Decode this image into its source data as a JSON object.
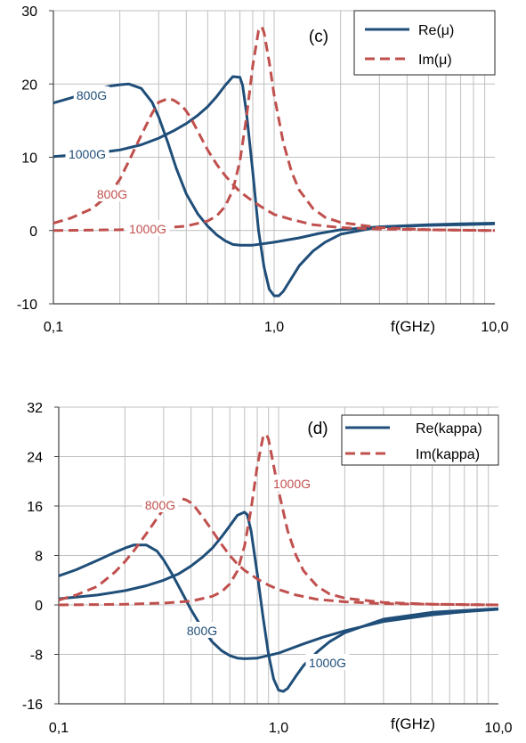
{
  "colors": {
    "re": "#1f4e79",
    "im": "#c0504d",
    "grid": "#bfbfbf",
    "axis": "#404040",
    "text": "#000000"
  },
  "chart_data": [
    {
      "type": "line",
      "panel_label": "(c)",
      "xlabel": "f(GHz)",
      "x_scale": "log",
      "xlim": [
        0.1,
        10.0
      ],
      "ylim": [
        -10,
        30
      ],
      "x_ticks": [
        0.1,
        1.0,
        10.0
      ],
      "x_tick_labels": [
        "0,1",
        "1,0",
        "10,0"
      ],
      "y_ticks": [
        -10,
        0,
        10,
        20,
        30
      ],
      "y_tick_labels": [
        "-10",
        "0",
        "10",
        "20",
        "30"
      ],
      "grid": true,
      "legend_position": "top-right",
      "legend": [
        "Re(μ)",
        "Im(μ)"
      ],
      "series": [
        {
          "name": "Re(μ)",
          "curve_label": "800G",
          "style": "solid",
          "x": [
            0.1,
            0.12,
            0.15,
            0.18,
            0.2,
            0.22,
            0.25,
            0.28,
            0.3,
            0.33,
            0.36,
            0.4,
            0.45,
            0.5,
            0.55,
            0.6,
            0.65,
            0.7,
            0.8,
            1.0,
            1.3,
            1.6,
            2.0,
            3.0,
            5.0,
            7.0,
            10.0
          ],
          "y": [
            17.4,
            18.1,
            19.0,
            19.7,
            19.9,
            20.0,
            19.4,
            17.5,
            15.5,
            12.0,
            8.5,
            5.0,
            2.3,
            0.6,
            -0.6,
            -1.4,
            -1.9,
            -2.0,
            -2.0,
            -1.6,
            -1.0,
            -0.4,
            0.1,
            0.5,
            0.7,
            0.8,
            0.9
          ]
        },
        {
          "name": "Re(μ)",
          "curve_label": "1000G",
          "style": "solid",
          "x": [
            0.1,
            0.15,
            0.2,
            0.25,
            0.3,
            0.35,
            0.4,
            0.45,
            0.5,
            0.55,
            0.6,
            0.65,
            0.7,
            0.72,
            0.75,
            0.8,
            0.85,
            0.9,
            0.95,
            1.0,
            1.05,
            1.1,
            1.2,
            1.3,
            1.5,
            1.7,
            2.0,
            3.0,
            5.0,
            7.0,
            10.0
          ],
          "y": [
            10.1,
            10.5,
            11.0,
            11.7,
            12.6,
            13.6,
            14.6,
            15.7,
            16.9,
            18.3,
            19.8,
            21.0,
            20.9,
            19.8,
            16.0,
            8.0,
            0.0,
            -5.0,
            -8.0,
            -8.9,
            -8.9,
            -8.3,
            -6.5,
            -4.8,
            -2.8,
            -1.6,
            -0.5,
            0.5,
            0.8,
            0.9,
            1.0
          ]
        },
        {
          "name": "Im(μ)",
          "curve_label": "800G",
          "style": "dashed",
          "x": [
            0.1,
            0.12,
            0.15,
            0.18,
            0.2,
            0.22,
            0.25,
            0.28,
            0.3,
            0.33,
            0.35,
            0.38,
            0.4,
            0.42,
            0.45,
            0.5,
            0.55,
            0.6,
            0.65,
            0.7,
            0.8,
            0.9,
            1.0,
            1.2,
            1.5,
            2.0,
            3.0,
            5.0,
            10.0
          ],
          "y": [
            1.0,
            1.7,
            3.0,
            5.0,
            7.0,
            9.5,
            13.0,
            16.0,
            17.5,
            18.0,
            17.8,
            17.1,
            16.3,
            15.3,
            13.6,
            11.0,
            9.0,
            7.5,
            6.3,
            5.3,
            4.0,
            3.0,
            2.2,
            1.5,
            0.8,
            0.4,
            0.2,
            0.1,
            0.0
          ]
        },
        {
          "name": "Im(μ)",
          "curve_label": "1000G",
          "style": "dashed",
          "x": [
            0.1,
            0.2,
            0.3,
            0.4,
            0.5,
            0.55,
            0.6,
            0.65,
            0.7,
            0.75,
            0.8,
            0.85,
            0.88,
            0.9,
            0.95,
            1.0,
            1.1,
            1.2,
            1.3,
            1.5,
            1.7,
            2.0,
            3.0,
            5.0,
            10.0
          ],
          "y": [
            0.0,
            0.1,
            0.3,
            0.6,
            1.3,
            2.0,
            3.3,
            5.5,
            9.5,
            15.5,
            22.5,
            27.3,
            27.8,
            27.0,
            23.0,
            18.5,
            12.0,
            8.0,
            5.5,
            3.0,
            1.8,
            1.1,
            0.4,
            0.1,
            0.0
          ]
        }
      ]
    },
    {
      "type": "line",
      "panel_label": "(d)",
      "xlabel": "f(GHz)",
      "x_scale": "log",
      "xlim": [
        0.1,
        10.0
      ],
      "ylim": [
        -16,
        32
      ],
      "x_ticks": [
        0.1,
        1.0,
        10.0
      ],
      "x_tick_labels": [
        "0,1",
        "1,0",
        "10,0"
      ],
      "y_ticks": [
        -16,
        -8,
        0,
        8,
        16,
        24,
        32
      ],
      "y_tick_labels": [
        "-16",
        "-8",
        "0",
        "8",
        "16",
        "24",
        "32"
      ],
      "grid": true,
      "legend_position": "top-right",
      "legend": [
        "Re(kappa)",
        "Im(kappa)"
      ],
      "series": [
        {
          "name": "Re(kappa)",
          "curve_label": "800G",
          "style": "solid",
          "x": [
            0.1,
            0.12,
            0.15,
            0.18,
            0.2,
            0.22,
            0.25,
            0.28,
            0.3,
            0.33,
            0.36,
            0.4,
            0.45,
            0.5,
            0.55,
            0.6,
            0.65,
            0.7,
            0.8,
            1.0,
            1.3,
            1.6,
            2.0,
            3.0,
            5.0,
            7.0,
            10.0
          ],
          "y": [
            4.7,
            5.7,
            7.2,
            8.5,
            9.2,
            9.7,
            9.7,
            8.7,
            7.3,
            4.8,
            2.3,
            -0.8,
            -3.8,
            -6.0,
            -7.4,
            -8.2,
            -8.6,
            -8.7,
            -8.6,
            -7.8,
            -6.3,
            -5.2,
            -4.2,
            -2.7,
            -1.6,
            -1.1,
            -0.7
          ]
        },
        {
          "name": "Re(kappa)",
          "curve_label": "1000G",
          "style": "solid",
          "x": [
            0.1,
            0.15,
            0.2,
            0.25,
            0.3,
            0.35,
            0.4,
            0.45,
            0.5,
            0.55,
            0.6,
            0.65,
            0.7,
            0.72,
            0.75,
            0.8,
            0.85,
            0.9,
            0.95,
            1.0,
            1.05,
            1.1,
            1.2,
            1.3,
            1.5,
            1.7,
            2.0,
            3.0,
            5.0,
            7.0,
            10.0
          ],
          "y": [
            1.0,
            1.6,
            2.3,
            3.1,
            4.0,
            5.0,
            6.3,
            7.7,
            9.2,
            11.0,
            12.8,
            14.5,
            15.0,
            14.6,
            12.0,
            5.0,
            -2.0,
            -8.0,
            -12.0,
            -13.8,
            -14.0,
            -13.5,
            -11.5,
            -9.8,
            -7.6,
            -6.0,
            -4.5,
            -2.3,
            -1.2,
            -0.9,
            -0.6
          ]
        },
        {
          "name": "Im(kappa)",
          "curve_label": "800G",
          "style": "dashed",
          "x": [
            0.1,
            0.12,
            0.15,
            0.18,
            0.2,
            0.22,
            0.25,
            0.28,
            0.3,
            0.33,
            0.35,
            0.38,
            0.4,
            0.42,
            0.45,
            0.5,
            0.55,
            0.6,
            0.65,
            0.7,
            0.8,
            0.9,
            1.0,
            1.2,
            1.5,
            2.0,
            3.0,
            5.0,
            10.0
          ],
          "y": [
            0.8,
            1.6,
            3.0,
            5.3,
            7.0,
            8.8,
            11.5,
            14.0,
            15.5,
            17.0,
            17.3,
            17.0,
            16.5,
            15.7,
            14.3,
            12.0,
            9.8,
            8.0,
            6.6,
            5.6,
            4.2,
            3.2,
            2.5,
            1.6,
            0.9,
            0.5,
            0.2,
            0.1,
            0.0
          ]
        },
        {
          "name": "Im(kappa)",
          "curve_label": "1000G",
          "style": "dashed",
          "x": [
            0.1,
            0.2,
            0.3,
            0.4,
            0.5,
            0.55,
            0.6,
            0.65,
            0.7,
            0.75,
            0.8,
            0.85,
            0.88,
            0.9,
            0.95,
            1.0,
            1.1,
            1.2,
            1.3,
            1.5,
            1.7,
            2.0,
            3.0,
            5.0,
            10.0
          ],
          "y": [
            0.0,
            0.1,
            0.3,
            0.6,
            1.4,
            2.1,
            3.4,
            5.5,
            9.5,
            15.5,
            22.5,
            27.2,
            27.6,
            26.8,
            22.5,
            18.5,
            12.0,
            8.0,
            5.5,
            3.0,
            1.8,
            1.1,
            0.4,
            0.1,
            0.0
          ]
        }
      ]
    }
  ]
}
